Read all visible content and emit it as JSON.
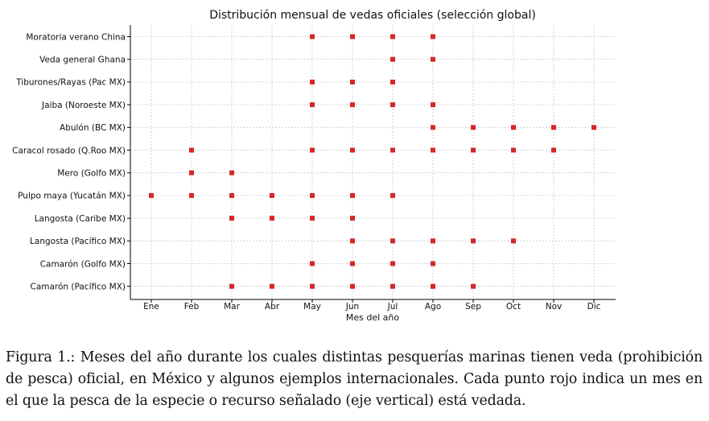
{
  "chart_data": {
    "type": "scatter",
    "title": "Distribución mensual de vedas oficiales (selección global)",
    "xlabel": "Mes del año",
    "ylabel": "",
    "categories": [
      "Ene",
      "Feb",
      "Mar",
      "Abr",
      "May",
      "Jun",
      "Jul",
      "Ago",
      "Sep",
      "Oct",
      "Nov",
      "Dic"
    ],
    "rows": [
      {
        "label": "Moratoria verano China",
        "months": [
          5,
          6,
          7,
          8
        ]
      },
      {
        "label": "Veda general Ghana",
        "months": [
          7,
          8
        ]
      },
      {
        "label": "Tiburones/Rayas (Pac MX)",
        "months": [
          5,
          6,
          7
        ]
      },
      {
        "label": "Jaiba (Noroeste MX)",
        "months": [
          5,
          6,
          7,
          8
        ]
      },
      {
        "label": "Abulón (BC MX)",
        "months": [
          8,
          9,
          10,
          11,
          12
        ]
      },
      {
        "label": "Caracol rosado (Q.Roo MX)",
        "months": [
          2,
          5,
          6,
          7,
          8,
          9,
          10,
          11
        ]
      },
      {
        "label": "Mero (Golfo MX)",
        "months": [
          2,
          3
        ]
      },
      {
        "label": "Pulpo maya (Yucatán MX)",
        "months": [
          1,
          2,
          3,
          4,
          5,
          6,
          7
        ]
      },
      {
        "label": "Langosta (Caribe MX)",
        "months": [
          3,
          4,
          5,
          6
        ]
      },
      {
        "label": "Langosta (Pacífico MX)",
        "months": [
          6,
          7,
          8,
          9,
          10
        ]
      },
      {
        "label": "Camarón (Golfo MX)",
        "months": [
          5,
          6,
          7,
          8
        ]
      },
      {
        "label": "Camarón (Pacífico MX)",
        "months": [
          3,
          4,
          5,
          6,
          7,
          8,
          9
        ]
      }
    ],
    "grid": true,
    "point_color": "#d62728"
  },
  "caption": "Figura 1.: Meses del año durante los cuales distintas pesquerías marinas tienen veda (prohibición de pesca) oficial, en México y algunos ejemplos internacionales. Cada punto rojo indica un mes en el que la pesca de la especie o recurso señalado (eje vertical) está vedada."
}
